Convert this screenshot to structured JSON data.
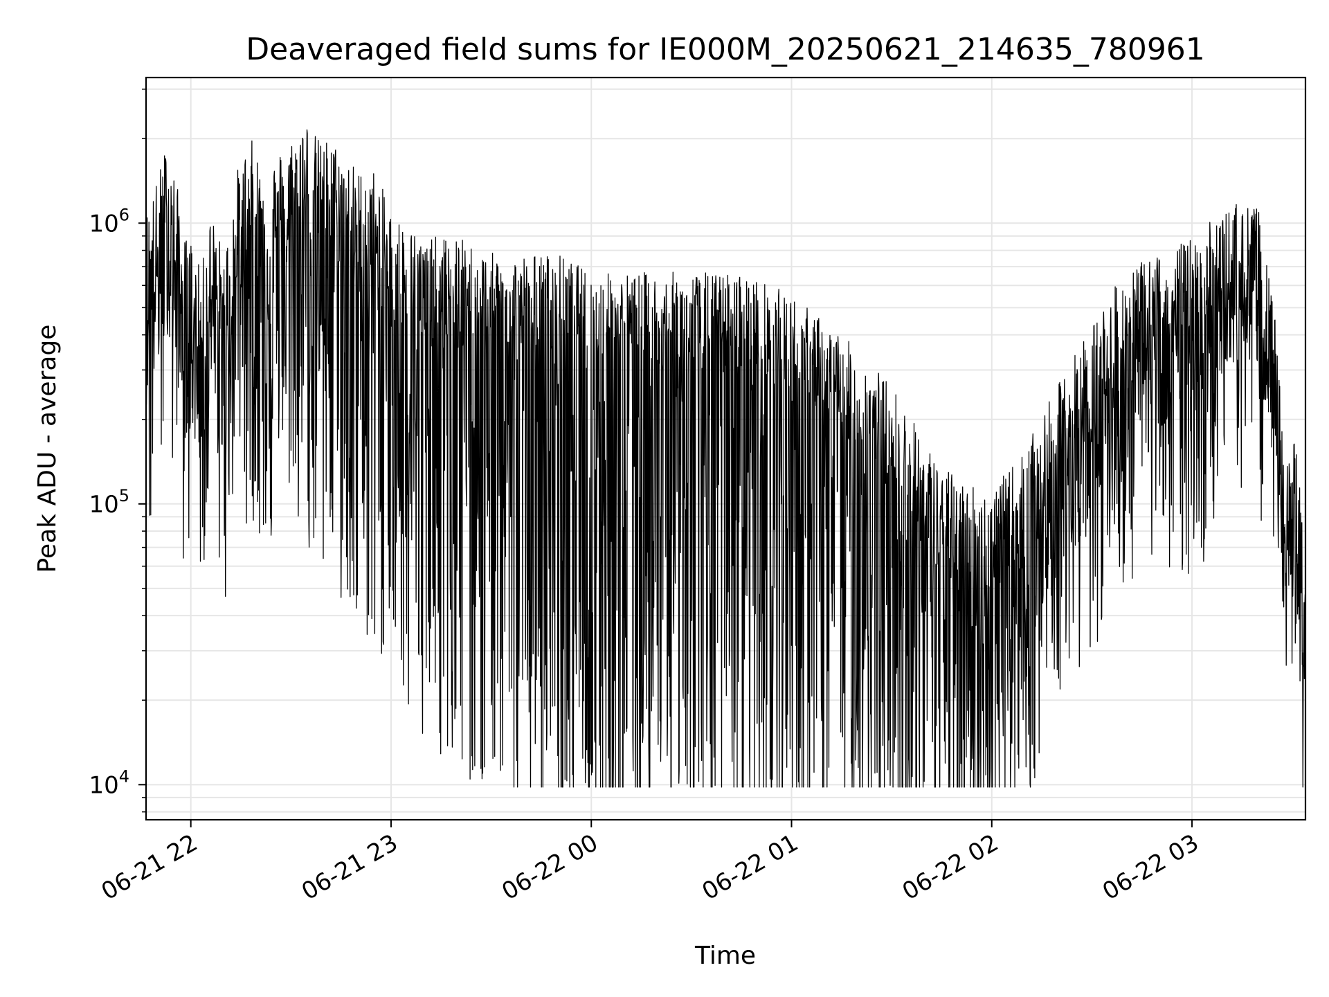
{
  "chart_data": {
    "type": "line",
    "title": "Deaveraged field sums for IE000M_20250621_214635_780961",
    "xlabel": "Time",
    "ylabel": "Peak ADU - average",
    "yscale": "log",
    "ylim": [
      7500,
      3300000
    ],
    "xlim": [
      "2025-06-21T21:46:35",
      "2025-06-22T03:34:00"
    ],
    "grid": true,
    "line_color": "#000000",
    "grid_color": "#e6e6e6",
    "x_tick_labels": [
      "06-21 22",
      "06-21 23",
      "06-22 00",
      "06-22 01",
      "06-22 02",
      "06-22 03"
    ],
    "y_tick_labels": [
      {
        "base": "10",
        "exp": "4",
        "value": 10000
      },
      {
        "base": "10",
        "exp": "5",
        "value": 100000
      },
      {
        "base": "10",
        "exp": "6",
        "value": 1000000
      }
    ],
    "series": [
      {
        "values_note": "high-frequency signal; anchor points (time, value)",
        "x": [
          "2025-06-21T21:46:35",
          "2025-06-21T21:50:00",
          "2025-06-21T21:53:00",
          "2025-06-21T21:56:00",
          "2025-06-21T21:58:00",
          "2025-06-21T22:00:00",
          "2025-06-21T22:03:00",
          "2025-06-21T22:06:00",
          "2025-06-21T22:10:00",
          "2025-06-21T22:14:00",
          "2025-06-21T22:18:00",
          "2025-06-21T22:22:00",
          "2025-06-21T22:26:00",
          "2025-06-21T22:30:00",
          "2025-06-21T22:34:00",
          "2025-06-21T22:38:00",
          "2025-06-21T22:42:00",
          "2025-06-21T22:46:00",
          "2025-06-21T22:50:00",
          "2025-06-21T22:55:00",
          "2025-06-21T23:00:00",
          "2025-06-21T23:10:00",
          "2025-06-21T23:20:00",
          "2025-06-21T23:30:00",
          "2025-06-21T23:40:00",
          "2025-06-21T23:50:00",
          "2025-06-22T00:00:00",
          "2025-06-22T00:15:00",
          "2025-06-22T00:30:00",
          "2025-06-22T00:45:00",
          "2025-06-22T01:00:00",
          "2025-06-22T01:15:00",
          "2025-06-22T01:30:00",
          "2025-06-22T01:45:00",
          "2025-06-22T02:00:00",
          "2025-06-22T02:10:00",
          "2025-06-22T02:20:00",
          "2025-06-22T02:30:00",
          "2025-06-22T02:40:00",
          "2025-06-22T02:50:00",
          "2025-06-22T03:00:00",
          "2025-06-22T03:05:00",
          "2025-06-22T03:10:00",
          "2025-06-22T03:15:00",
          "2025-06-22T03:20:00",
          "2025-06-22T03:25:00",
          "2025-06-22T03:28:00",
          "2025-06-22T03:31:00",
          "2025-06-22T03:34:00"
        ],
        "y": [
          500000,
          650000,
          900000,
          600000,
          400000,
          400000,
          300000,
          500000,
          350000,
          700000,
          900000,
          700000,
          800000,
          900000,
          1100000,
          900000,
          900000,
          800000,
          700000,
          700000,
          500000,
          400000,
          400000,
          350000,
          350000,
          350000,
          300000,
          300000,
          300000,
          300000,
          250000,
          180000,
          120000,
          60000,
          50000,
          70000,
          120000,
          200000,
          300000,
          350000,
          400000,
          450000,
          500000,
          550000,
          500000,
          200000,
          60000,
          80000,
          30000
        ]
      }
    ]
  }
}
